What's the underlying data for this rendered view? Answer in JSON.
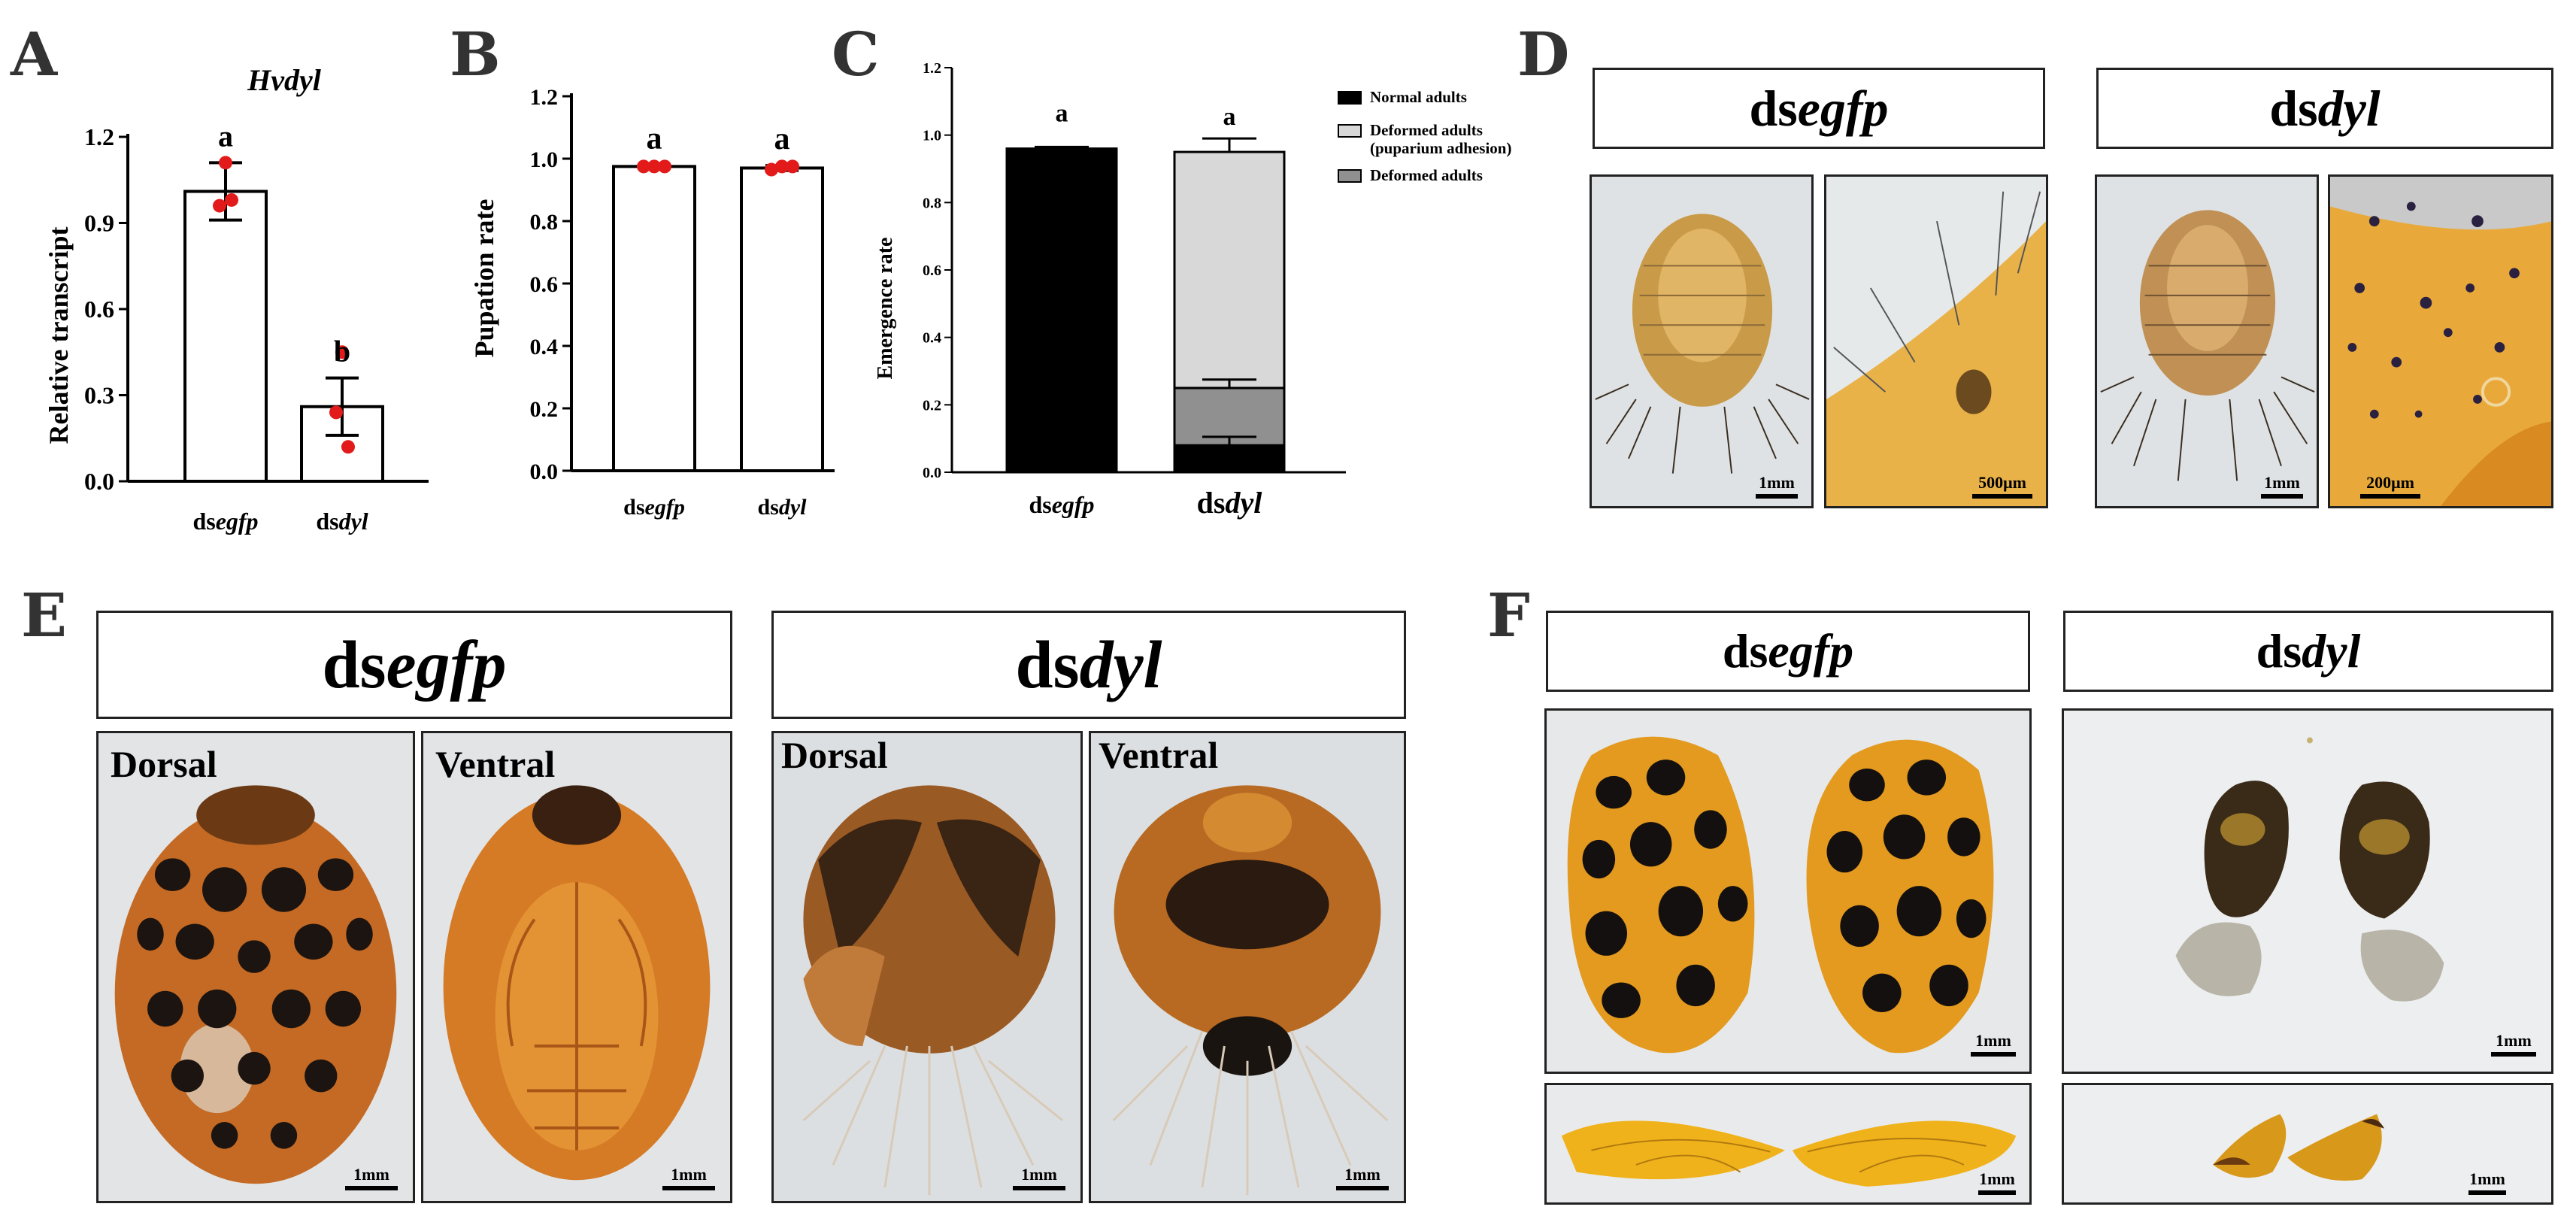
{
  "figure": {
    "panels": {
      "A": "A",
      "B": "B",
      "C": "C",
      "D": "D",
      "E": "E",
      "F": "F"
    },
    "treatments": {
      "control": "egfp",
      "target": "dyl",
      "prefix": "ds"
    },
    "panel_d": {
      "headers": [
        "dsegfp",
        "dsdyl"
      ],
      "scalebars": [
        "1mm",
        "500μm",
        "1mm",
        "200μm"
      ]
    },
    "panel_e": {
      "headers": [
        "dsegfp",
        "dsdyl"
      ],
      "views": [
        "Dorsal",
        "Ventral",
        "Dorsal",
        "Ventral"
      ],
      "scalebars": [
        "1mm",
        "1mm",
        "1mm",
        "1mm"
      ]
    },
    "panel_f": {
      "headers": [
        "dsegfp",
        "dsdyl"
      ],
      "scalebars": [
        "1mm",
        "1mm",
        "1mm",
        "1mm"
      ]
    }
  },
  "chart_data": [
    {
      "id": "A",
      "type": "bar",
      "title": "Hvdyl",
      "ylabel": "Relative transcript",
      "xlabel": "",
      "categories": [
        "dsegfp",
        "dsdyl"
      ],
      "values": [
        1.01,
        0.26
      ],
      "errors": [
        0.1,
        0.1
      ],
      "points": [
        [
          1.11,
          0.96,
          0.98
        ],
        [
          0.45,
          0.24,
          0.12
        ]
      ],
      "letters": [
        "a",
        "b"
      ],
      "ylim": [
        0,
        1.2
      ],
      "yticks": [
        "0.0",
        "0.3",
        "0.6",
        "0.9",
        "1.2"
      ]
    },
    {
      "id": "B",
      "type": "bar",
      "title": "",
      "ylabel": "Pupation rate",
      "xlabel": "",
      "categories": [
        "dsegfp",
        "dsdyl"
      ],
      "values": [
        0.975,
        0.97
      ],
      "errors": [
        0.005,
        0.008
      ],
      "points": [
        [
          0.975,
          0.975,
          0.975
        ],
        [
          0.965,
          0.975,
          0.975
        ]
      ],
      "letters": [
        "a",
        "a"
      ],
      "ylim": [
        0,
        1.2
      ],
      "yticks": [
        "0.0",
        "0.2",
        "0.4",
        "0.6",
        "0.8",
        "1.0",
        "1.2"
      ]
    },
    {
      "id": "C",
      "type": "bar",
      "stacked": true,
      "title": "",
      "ylabel": "Emergence rate",
      "xlabel": "",
      "categories": [
        "dsegfp",
        "dsdyl"
      ],
      "series": [
        {
          "name": "Normal adults",
          "values": [
            0.96,
            0.08
          ],
          "errors": [
            0.005,
            0.025
          ],
          "color": "#000000"
        },
        {
          "name": "Deformed adults",
          "values": [
            0.0,
            0.17
          ],
          "errors": [
            0.0,
            0.025
          ],
          "color": "#909090"
        },
        {
          "name": "Deformed adults (puparium adhesion)",
          "values": [
            0.0,
            0.7
          ],
          "errors": [
            0.0,
            0.04
          ],
          "color": "#d8d8d8"
        }
      ],
      "legend": [
        "Normal adults",
        "Deformed adults (puparium adhesion)",
        "Deformed adults"
      ],
      "letters": [
        "a",
        "a"
      ],
      "ylim": [
        0,
        1.2
      ],
      "yticks": [
        "0.0",
        "0.2",
        "0.4",
        "0.6",
        "0.8",
        "1.0",
        "1.2"
      ]
    }
  ]
}
